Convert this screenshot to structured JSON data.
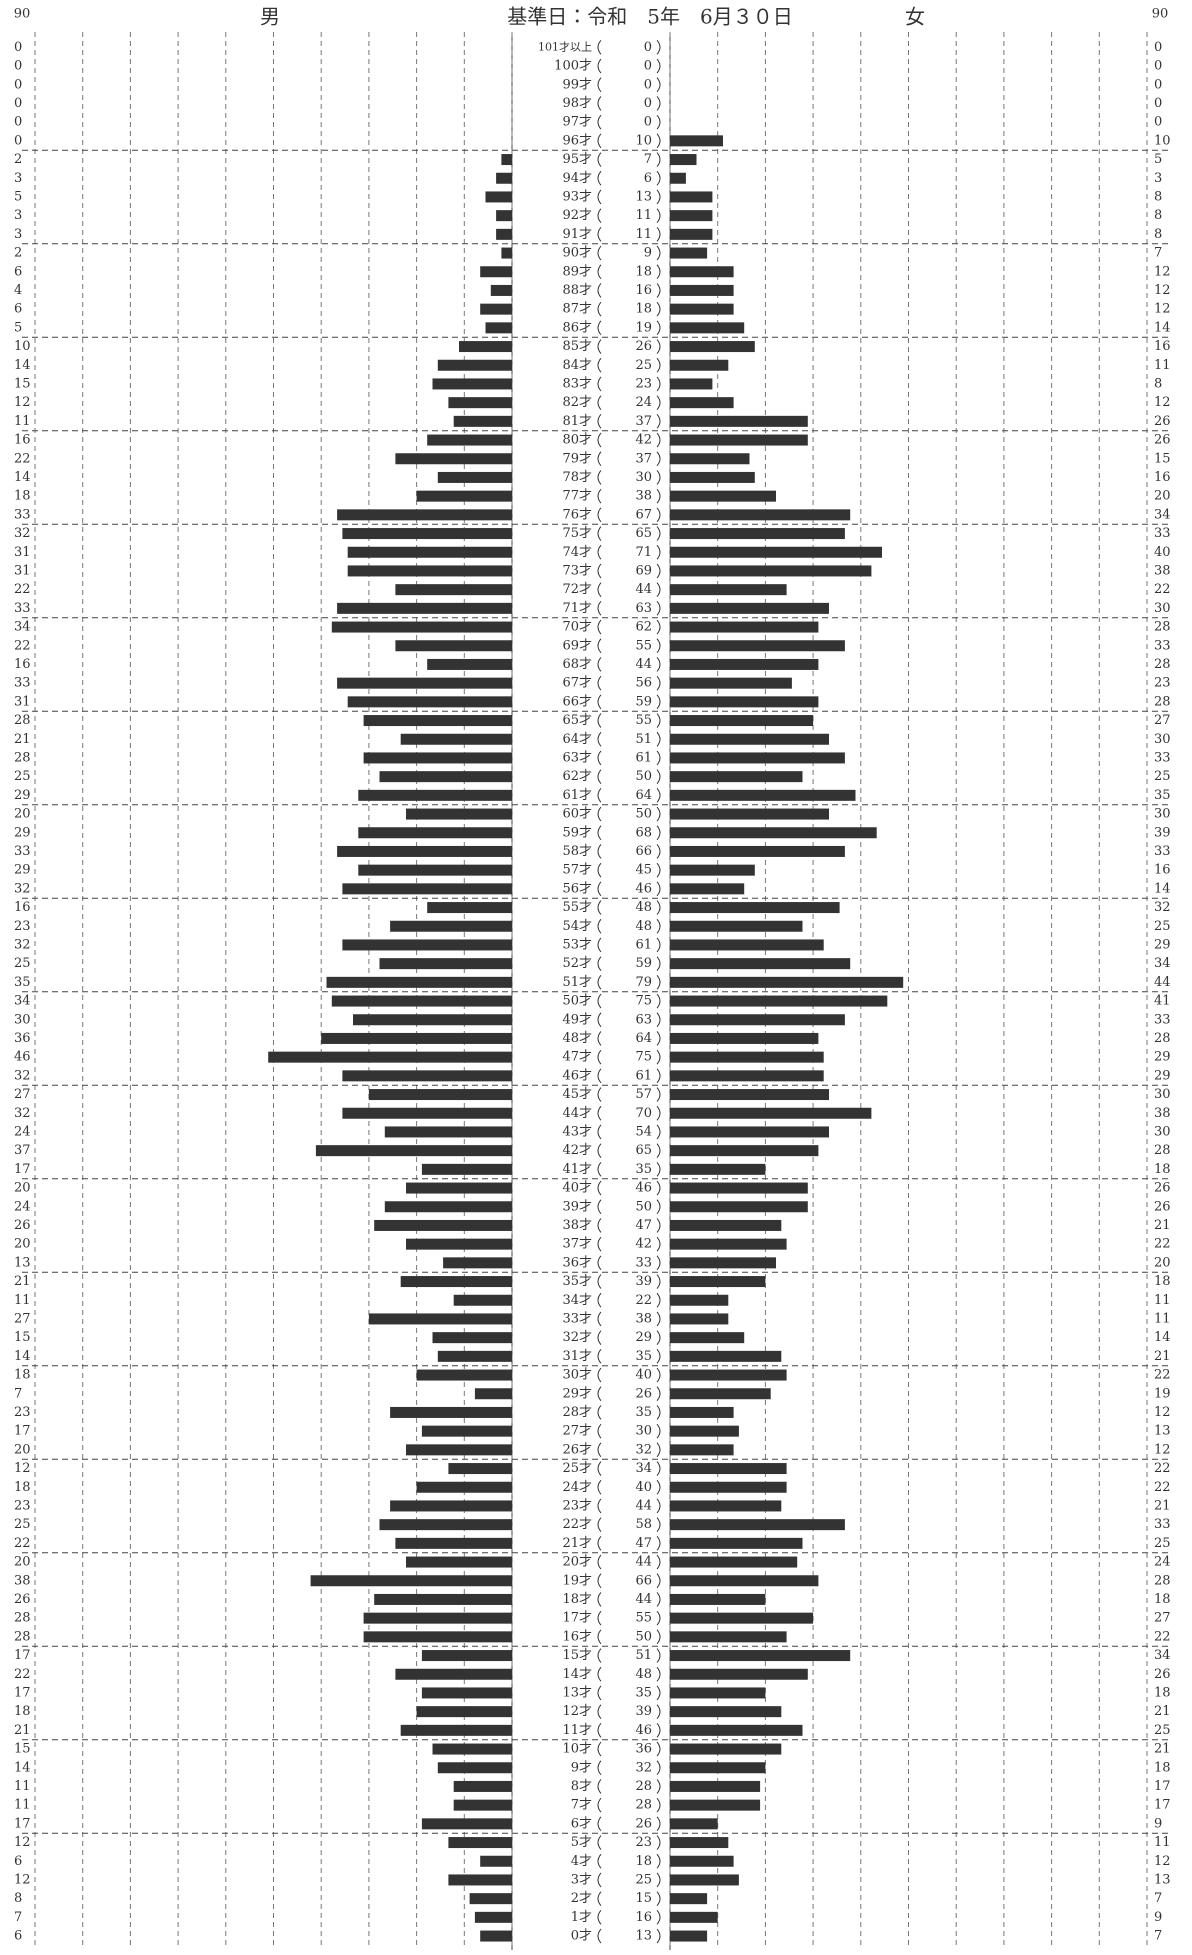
{
  "chart_data": {
    "type": "pyramid",
    "title": "基準日：令和　5年　6月３０日",
    "categories": [
      "101才以上",
      "100才",
      "99才",
      "98才",
      "97才",
      "96才",
      "95才",
      "94才",
      "93才",
      "92才",
      "91才",
      "90才",
      "89才",
      "88才",
      "87才",
      "86才",
      "85才",
      "84才",
      "83才",
      "82才",
      "81才",
      "80才",
      "79才",
      "78才",
      "77才",
      "76才",
      "75才",
      "74才",
      "73才",
      "72才",
      "71才",
      "70才",
      "69才",
      "68才",
      "67才",
      "66才",
      "65才",
      "64才",
      "63才",
      "62才",
      "61才",
      "60才",
      "59才",
      "58才",
      "57才",
      "56才",
      "55才",
      "54才",
      "53才",
      "52才",
      "51才",
      "50才",
      "49才",
      "48才",
      "47才",
      "46才",
      "45才",
      "44才",
      "43才",
      "42才",
      "41才",
      "40才",
      "39才",
      "38才",
      "37才",
      "36才",
      "35才",
      "34才",
      "33才",
      "32才",
      "31才",
      "30才",
      "29才",
      "28才",
      "27才",
      "26才",
      "25才",
      "24才",
      "23才",
      "22才",
      "21才",
      "20才",
      "19才",
      "18才",
      "17才",
      "16才",
      "15才",
      "14才",
      "13才",
      "12才",
      "11才",
      "10才",
      "9才",
      "8才",
      "7才",
      "6才",
      "5才",
      "4才",
      "3才",
      "2才",
      "1才",
      "0才"
    ],
    "series": [
      {
        "name": "男",
        "color": "#333333",
        "values": [
          0,
          0,
          0,
          0,
          0,
          0,
          2,
          3,
          5,
          3,
          3,
          2,
          6,
          4,
          6,
          5,
          10,
          14,
          15,
          12,
          11,
          16,
          22,
          14,
          18,
          33,
          32,
          31,
          31,
          22,
          33,
          34,
          22,
          16,
          33,
          31,
          28,
          21,
          28,
          25,
          29,
          20,
          29,
          33,
          29,
          32,
          16,
          23,
          32,
          25,
          35,
          34,
          30,
          36,
          46,
          32,
          27,
          32,
          24,
          37,
          17,
          20,
          24,
          26,
          20,
          13,
          21,
          11,
          27,
          15,
          14,
          18,
          7,
          23,
          17,
          20,
          12,
          18,
          23,
          25,
          22,
          20,
          38,
          26,
          28,
          28,
          17,
          22,
          17,
          18,
          21,
          15,
          14,
          11,
          11,
          17,
          12,
          6,
          12,
          8,
          7,
          6
        ]
      },
      {
        "name": "女",
        "color": "#333333",
        "values": [
          0,
          0,
          0,
          0,
          0,
          10,
          5,
          3,
          8,
          8,
          8,
          7,
          12,
          12,
          12,
          14,
          16,
          11,
          8,
          12,
          26,
          26,
          15,
          16,
          20,
          34,
          33,
          40,
          38,
          22,
          30,
          28,
          33,
          28,
          23,
          28,
          27,
          30,
          33,
          25,
          35,
          30,
          39,
          33,
          16,
          14,
          32,
          25,
          29,
          34,
          44,
          41,
          33,
          28,
          29,
          29,
          30,
          38,
          30,
          28,
          18,
          26,
          26,
          21,
          22,
          20,
          18,
          11,
          11,
          14,
          21,
          22,
          19,
          12,
          13,
          12,
          22,
          22,
          21,
          33,
          25,
          24,
          28,
          18,
          27,
          22,
          34,
          26,
          18,
          21,
          25,
          21,
          18,
          17,
          17,
          9,
          11,
          12,
          13,
          7,
          9,
          7
        ]
      }
    ],
    "total": [
      0,
      0,
      0,
      0,
      0,
      10,
      7,
      6,
      13,
      11,
      11,
      9,
      18,
      16,
      18,
      19,
      26,
      25,
      23,
      24,
      37,
      42,
      37,
      30,
      38,
      67,
      65,
      71,
      69,
      44,
      63,
      62,
      55,
      44,
      56,
      59,
      55,
      51,
      61,
      50,
      64,
      50,
      68,
      66,
      45,
      46,
      48,
      48,
      61,
      59,
      79,
      75,
      63,
      64,
      75,
      61,
      57,
      70,
      54,
      65,
      35,
      46,
      50,
      47,
      42,
      33,
      39,
      22,
      38,
      29,
      35,
      40,
      26,
      35,
      30,
      32,
      34,
      40,
      44,
      58,
      47,
      44,
      66,
      44,
      55,
      50,
      51,
      48,
      35,
      39,
      46,
      36,
      32,
      28,
      28,
      26,
      23,
      18,
      25,
      15,
      16,
      13
    ],
    "xlim": [
      0,
      90
    ],
    "xticks": [
      0,
      9,
      18,
      27,
      36,
      45,
      54,
      63,
      72,
      81,
      90
    ],
    "grid": true
  }
}
